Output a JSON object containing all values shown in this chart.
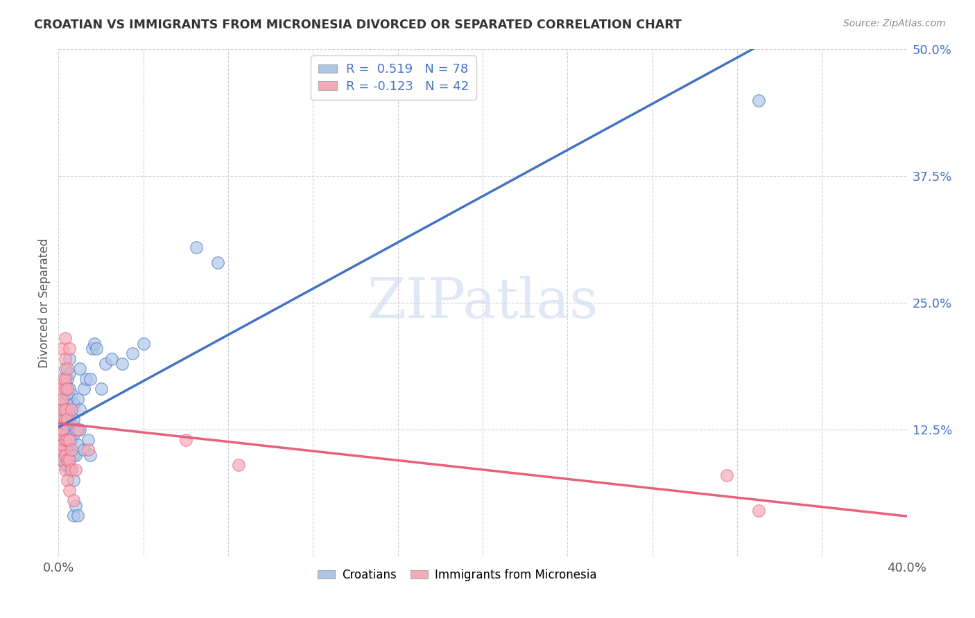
{
  "title": "CROATIAN VS IMMIGRANTS FROM MICRONESIA DIVORCED OR SEPARATED CORRELATION CHART",
  "source": "Source: ZipAtlas.com",
  "ylabel": "Divorced or Separated",
  "xlim": [
    0.0,
    0.4
  ],
  "ylim": [
    0.0,
    0.5
  ],
  "xticks": [
    0.0,
    0.04,
    0.08,
    0.12,
    0.16,
    0.2,
    0.24,
    0.28,
    0.32,
    0.36,
    0.4
  ],
  "xtick_labels_show": [
    "0.0%",
    "",
    "",
    "",
    "",
    "",
    "",
    "",
    "",
    "",
    "40.0%"
  ],
  "yticks": [
    0.0,
    0.125,
    0.25,
    0.375,
    0.5
  ],
  "ytick_labels": [
    "",
    "12.5%",
    "25.0%",
    "37.5%",
    "50.0%"
  ],
  "croatian_R": 0.519,
  "croatian_N": 78,
  "micronesia_R": -0.123,
  "micronesia_N": 42,
  "blue_color": "#aec6e8",
  "pink_color": "#f5aab8",
  "blue_line_color": "#4472c4",
  "pink_line_color": "#e8607a",
  "blue_scatter": [
    [
      0.001,
      0.1
    ],
    [
      0.001,
      0.115
    ],
    [
      0.001,
      0.125
    ],
    [
      0.001,
      0.135
    ],
    [
      0.001,
      0.145
    ],
    [
      0.002,
      0.095
    ],
    [
      0.002,
      0.105
    ],
    [
      0.002,
      0.11
    ],
    [
      0.002,
      0.12
    ],
    [
      0.002,
      0.13
    ],
    [
      0.002,
      0.14
    ],
    [
      0.003,
      0.09
    ],
    [
      0.003,
      0.1
    ],
    [
      0.003,
      0.11
    ],
    [
      0.003,
      0.12
    ],
    [
      0.003,
      0.13
    ],
    [
      0.003,
      0.14
    ],
    [
      0.003,
      0.155
    ],
    [
      0.003,
      0.165
    ],
    [
      0.003,
      0.175
    ],
    [
      0.003,
      0.185
    ],
    [
      0.004,
      0.095
    ],
    [
      0.004,
      0.105
    ],
    [
      0.004,
      0.115
    ],
    [
      0.004,
      0.125
    ],
    [
      0.004,
      0.135
    ],
    [
      0.004,
      0.145
    ],
    [
      0.004,
      0.16
    ],
    [
      0.004,
      0.175
    ],
    [
      0.005,
      0.085
    ],
    [
      0.005,
      0.095
    ],
    [
      0.005,
      0.105
    ],
    [
      0.005,
      0.115
    ],
    [
      0.005,
      0.125
    ],
    [
      0.005,
      0.135
    ],
    [
      0.005,
      0.15
    ],
    [
      0.005,
      0.165
    ],
    [
      0.005,
      0.18
    ],
    [
      0.005,
      0.195
    ],
    [
      0.006,
      0.085
    ],
    [
      0.006,
      0.1
    ],
    [
      0.006,
      0.115
    ],
    [
      0.006,
      0.13
    ],
    [
      0.006,
      0.145
    ],
    [
      0.006,
      0.16
    ],
    [
      0.007,
      0.04
    ],
    [
      0.007,
      0.075
    ],
    [
      0.007,
      0.1
    ],
    [
      0.007,
      0.12
    ],
    [
      0.007,
      0.135
    ],
    [
      0.007,
      0.15
    ],
    [
      0.008,
      0.05
    ],
    [
      0.008,
      0.1
    ],
    [
      0.008,
      0.125
    ],
    [
      0.009,
      0.04
    ],
    [
      0.009,
      0.11
    ],
    [
      0.009,
      0.155
    ],
    [
      0.01,
      0.125
    ],
    [
      0.01,
      0.145
    ],
    [
      0.01,
      0.185
    ],
    [
      0.012,
      0.105
    ],
    [
      0.012,
      0.165
    ],
    [
      0.013,
      0.175
    ],
    [
      0.014,
      0.115
    ],
    [
      0.015,
      0.1
    ],
    [
      0.015,
      0.175
    ],
    [
      0.016,
      0.205
    ],
    [
      0.017,
      0.21
    ],
    [
      0.018,
      0.205
    ],
    [
      0.02,
      0.165
    ],
    [
      0.022,
      0.19
    ],
    [
      0.025,
      0.195
    ],
    [
      0.03,
      0.19
    ],
    [
      0.035,
      0.2
    ],
    [
      0.04,
      0.21
    ],
    [
      0.065,
      0.305
    ],
    [
      0.075,
      0.29
    ],
    [
      0.33,
      0.45
    ]
  ],
  "pink_scatter": [
    [
      0.001,
      0.105
    ],
    [
      0.001,
      0.12
    ],
    [
      0.001,
      0.135
    ],
    [
      0.001,
      0.15
    ],
    [
      0.001,
      0.165
    ],
    [
      0.002,
      0.095
    ],
    [
      0.002,
      0.11
    ],
    [
      0.002,
      0.125
    ],
    [
      0.002,
      0.145
    ],
    [
      0.002,
      0.155
    ],
    [
      0.002,
      0.175
    ],
    [
      0.002,
      0.205
    ],
    [
      0.003,
      0.085
    ],
    [
      0.003,
      0.1
    ],
    [
      0.003,
      0.115
    ],
    [
      0.003,
      0.135
    ],
    [
      0.003,
      0.145
    ],
    [
      0.003,
      0.165
    ],
    [
      0.003,
      0.175
    ],
    [
      0.003,
      0.195
    ],
    [
      0.003,
      0.215
    ],
    [
      0.004,
      0.075
    ],
    [
      0.004,
      0.095
    ],
    [
      0.004,
      0.115
    ],
    [
      0.004,
      0.135
    ],
    [
      0.004,
      0.165
    ],
    [
      0.004,
      0.185
    ],
    [
      0.005,
      0.065
    ],
    [
      0.005,
      0.095
    ],
    [
      0.005,
      0.115
    ],
    [
      0.005,
      0.205
    ],
    [
      0.006,
      0.085
    ],
    [
      0.006,
      0.105
    ],
    [
      0.006,
      0.145
    ],
    [
      0.007,
      0.055
    ],
    [
      0.008,
      0.085
    ],
    [
      0.009,
      0.125
    ],
    [
      0.014,
      0.105
    ],
    [
      0.06,
      0.115
    ],
    [
      0.085,
      0.09
    ],
    [
      0.315,
      0.08
    ],
    [
      0.33,
      0.045
    ]
  ],
  "watermark": "ZIPatlas",
  "background_color": "#ffffff",
  "grid_color": "#d0d0d0"
}
